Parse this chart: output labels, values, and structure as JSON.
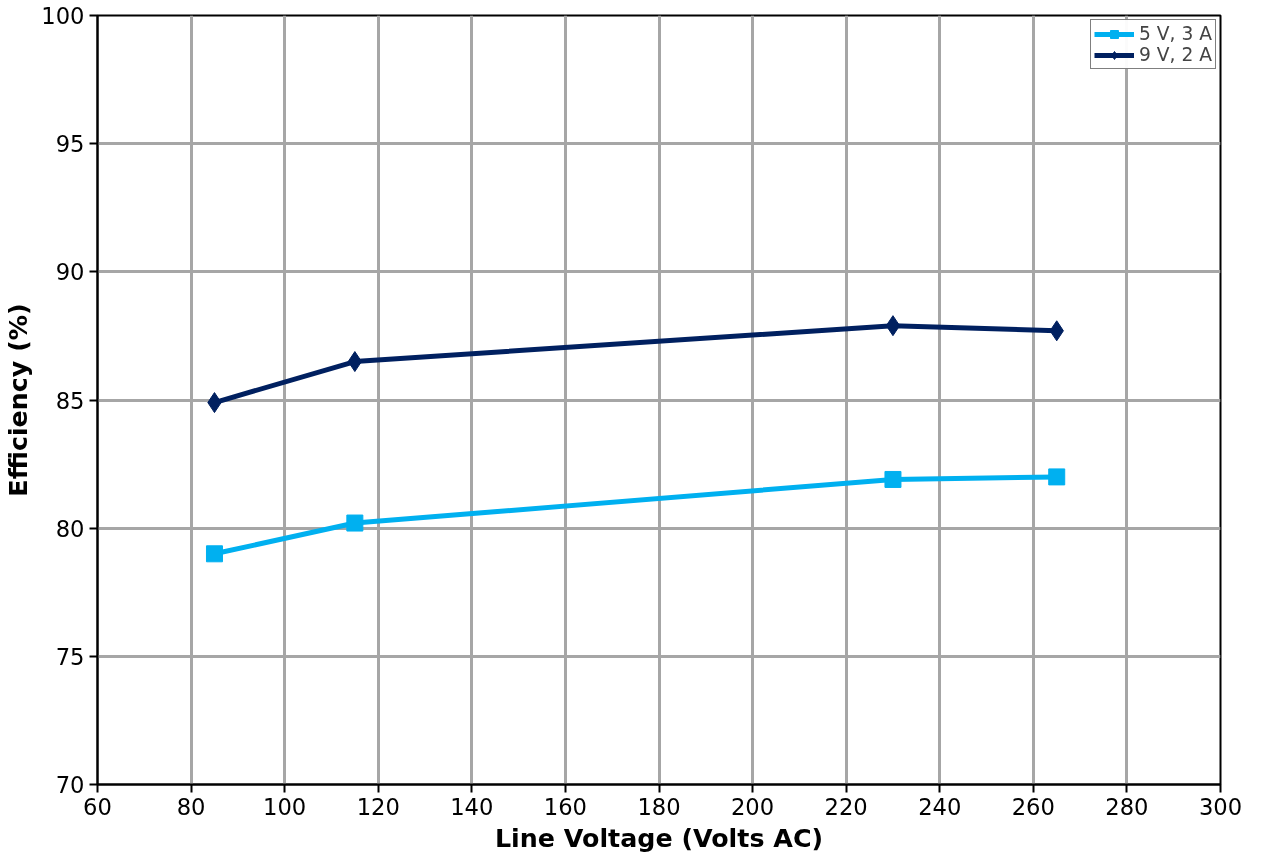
{
  "chart_data": {
    "type": "line",
    "xlabel": "Line Voltage (Volts AC)",
    "ylabel": "Efficiency (%)",
    "x": [
      85,
      115,
      230,
      265
    ],
    "series": [
      {
        "name": "5 V, 3 A",
        "color": "#00b0f0",
        "marker": "square",
        "values": [
          79.0,
          80.2,
          81.9,
          82.0
        ]
      },
      {
        "name": "9 V, 2 A",
        "color": "#002060",
        "marker": "diamond",
        "values": [
          84.9,
          86.5,
          87.9,
          87.7
        ]
      }
    ],
    "xlim": [
      60,
      300
    ],
    "xticks": [
      60,
      80,
      100,
      120,
      140,
      160,
      180,
      200,
      220,
      240,
      260,
      280,
      300
    ],
    "ylim": [
      70,
      100
    ],
    "yticks": [
      70,
      75,
      80,
      85,
      90,
      95,
      100
    ],
    "grid": true,
    "legend": "top right",
    "line_style": "solid"
  }
}
